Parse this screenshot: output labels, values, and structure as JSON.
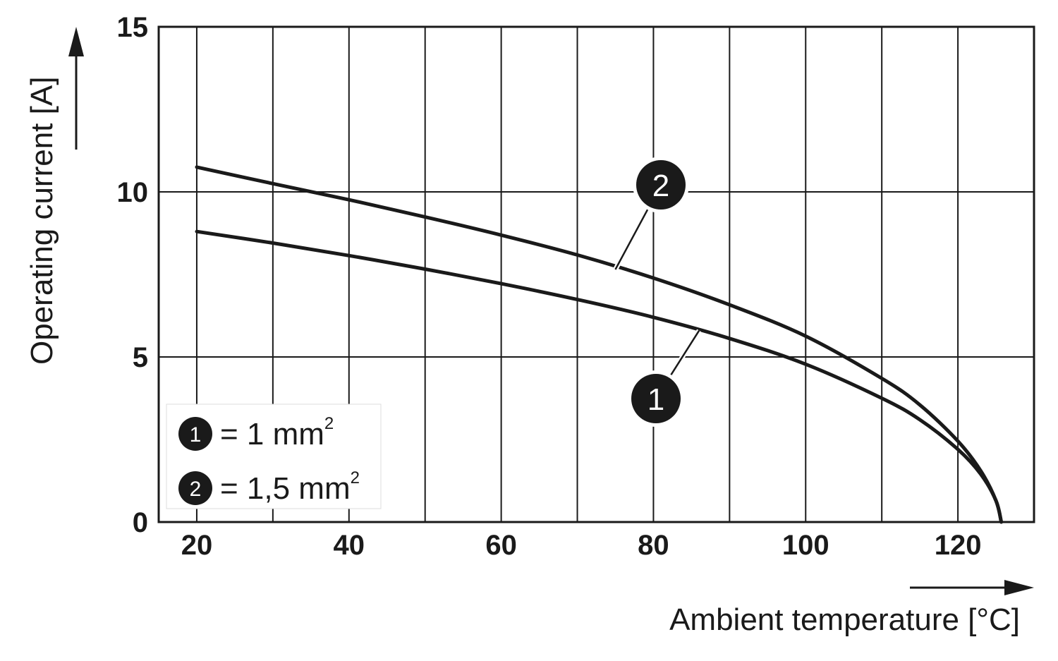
{
  "chart_data": {
    "type": "line",
    "xlabel": "Ambient temperature [°C]",
    "ylabel": "Operating current [A]",
    "xlim": [
      15,
      130
    ],
    "ylim": [
      0,
      15
    ],
    "x_ticks": [
      20,
      40,
      60,
      80,
      100,
      120
    ],
    "x_tick_labels": [
      "20",
      "40",
      "60",
      "80",
      "100",
      "120"
    ],
    "y_ticks": [
      0,
      5,
      10,
      15
    ],
    "y_tick_labels": [
      "0",
      "5",
      "10",
      "15"
    ],
    "x_grid": [
      20,
      30,
      40,
      50,
      60,
      70,
      80,
      90,
      100,
      110,
      120
    ],
    "y_grid": [
      5,
      10
    ],
    "grid": true,
    "legend_position": "bottom-left",
    "series": [
      {
        "id": "1",
        "name": "1 mm",
        "name_superscript": "2",
        "x": [
          20,
          30,
          40,
          50,
          60,
          70,
          80,
          90,
          100,
          110,
          115,
          120,
          123,
          125,
          125.7
        ],
        "y": [
          8.8,
          8.45,
          8.07,
          7.66,
          7.22,
          6.74,
          6.2,
          5.56,
          4.78,
          3.75,
          3.1,
          2.2,
          1.45,
          0.65,
          0.0
        ]
      },
      {
        "id": "2",
        "name": "1,5 mm",
        "name_superscript": "2",
        "x": [
          20,
          30,
          40,
          50,
          60,
          70,
          80,
          90,
          100,
          110,
          115,
          120,
          123,
          125,
          125.7
        ],
        "y": [
          10.75,
          10.25,
          9.76,
          9.24,
          8.69,
          8.09,
          7.39,
          6.58,
          5.63,
          4.35,
          3.55,
          2.45,
          1.55,
          0.65,
          0.0
        ]
      }
    ],
    "annotations": [
      {
        "label": "1",
        "series": "1",
        "point_x": 86,
        "point_y": 5.8
      },
      {
        "label": "2",
        "series": "2",
        "point_x": 75,
        "point_y": 7.65
      }
    ],
    "legend": [
      {
        "badge": "1",
        "text": "= 1 mm",
        "superscript": "2"
      },
      {
        "badge": "2",
        "text": "= 1,5 mm",
        "superscript": "2"
      }
    ]
  }
}
